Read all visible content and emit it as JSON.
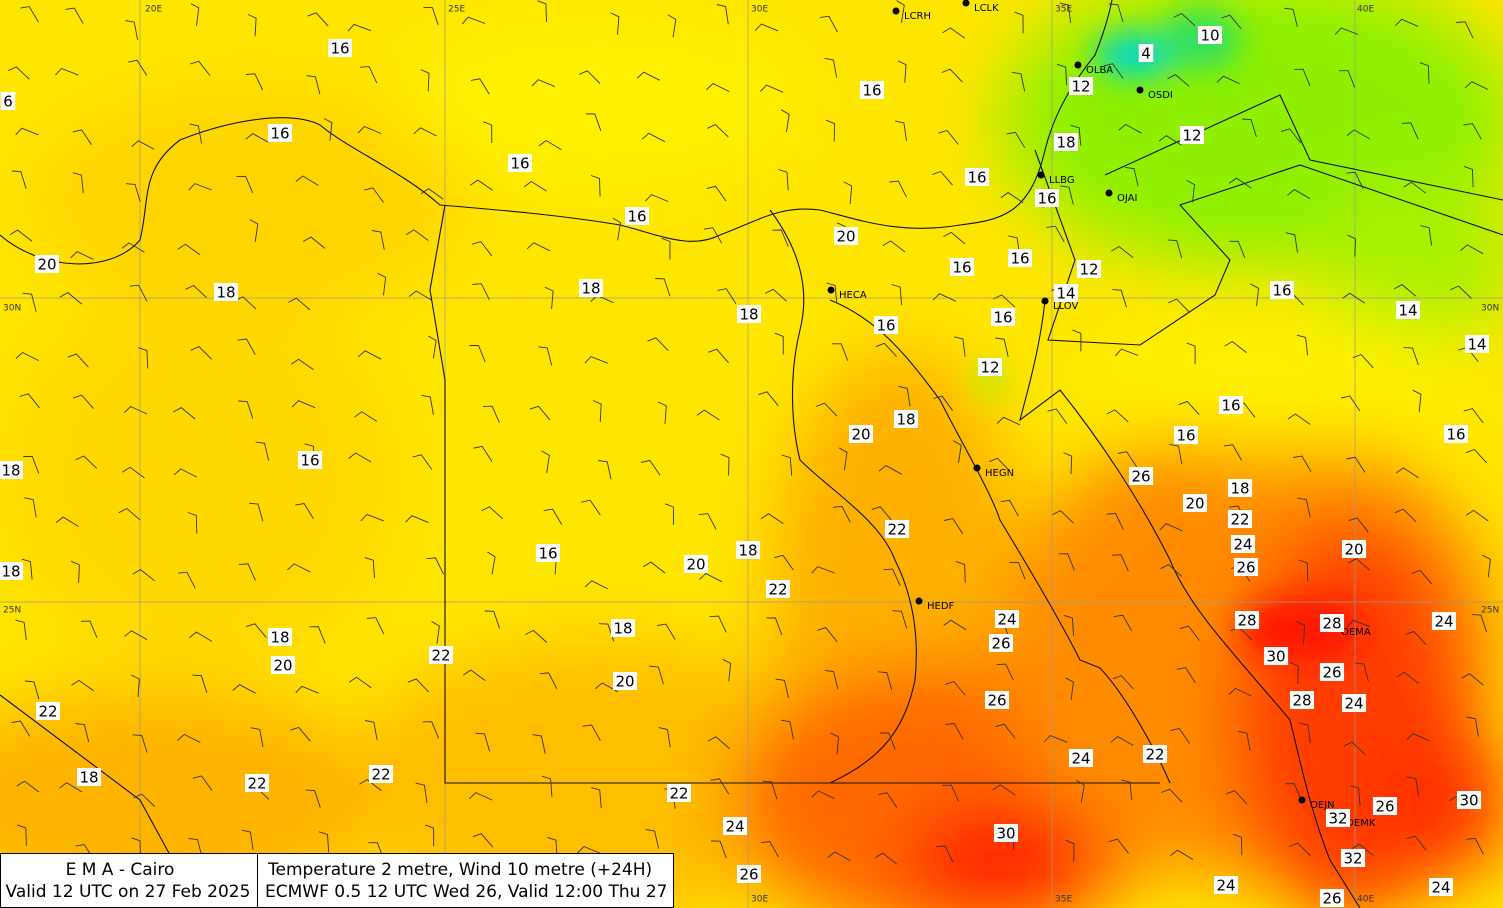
{
  "grid_labels": {
    "top": [
      "20E",
      "25E",
      "30E",
      "35E",
      "40E"
    ],
    "bottom": [
      "30E",
      "35E",
      "40E"
    ],
    "left": [
      "30N",
      "25N"
    ],
    "right": [
      "30N",
      "25N"
    ]
  },
  "stations": [
    "LCRH",
    "LCLK",
    "OLBA",
    "OSDI",
    "LLBG",
    "OJAI",
    "HECA",
    "LLOV",
    "HEGN",
    "HEDF",
    "OEMA",
    "OEJN",
    "OEMK"
  ],
  "temperature_labels": [
    16,
    16,
    16,
    16,
    20,
    18,
    18,
    20,
    16,
    16,
    16,
    16,
    4,
    10,
    12,
    18,
    12,
    16,
    12,
    14,
    16,
    14,
    14,
    6,
    18,
    16,
    16,
    12,
    18,
    20,
    16,
    16,
    16,
    18,
    16,
    26,
    18,
    20,
    22,
    22,
    24,
    26,
    20,
    18,
    16,
    20,
    18,
    22,
    28,
    28,
    24,
    24,
    26,
    18,
    30,
    26,
    18,
    20,
    22,
    20,
    28,
    24,
    26,
    22,
    24,
    22,
    18,
    22,
    22,
    22,
    24,
    30,
    26,
    30,
    32,
    32,
    26,
    24,
    26,
    24
  ],
  "info": {
    "office": "E M A  -  Cairo",
    "valid": "Valid 12 UTC on 27 Feb 2025",
    "product": "Temperature  2 metre, Wind  10 metre (+24H)",
    "model": "ECMWF 0.5 12 UTC Wed 26, Valid 12:00 Thu 27"
  }
}
